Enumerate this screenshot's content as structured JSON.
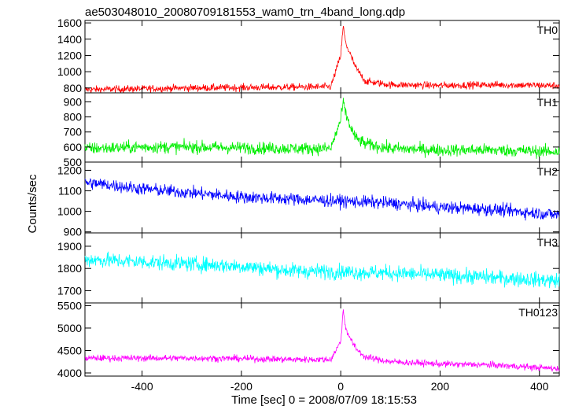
{
  "title": "ae503048010_20080709181553_wam0_trn_4band_long.qdp",
  "xlabel": "Time [sec] 0 = 2008/07/09 18:15:53",
  "ylabel": "Counts/sec",
  "chart_data": {
    "type": "line",
    "title": "ae503048010_20080709181553_wam0_trn_4band_long.qdp",
    "xlabel": "Time [sec] 0 = 2008/07/09 18:15:53",
    "ylabel": "Counts/sec",
    "xlim": [
      -515,
      440
    ],
    "x_ticks": [
      -400,
      -200,
      0,
      200,
      400
    ],
    "grid": false,
    "panels": [
      {
        "name": "TH0",
        "color": "#ff0000",
        "ylim": [
          740,
          1630
        ],
        "y_ticks": [
          800,
          1000,
          1200,
          1400,
          1600
        ],
        "description_points": {
          "x": [
            -510,
            -400,
            -300,
            -200,
            -100,
            -20,
            0,
            5,
            10,
            20,
            30,
            50,
            100,
            200,
            300,
            430
          ],
          "y": [
            780,
            790,
            800,
            805,
            810,
            815,
            1200,
            1560,
            1350,
            1200,
            1050,
            880,
            840,
            830,
            840,
            830
          ]
        }
      },
      {
        "name": "TH1",
        "color": "#00ee00",
        "ylim": [
          500,
          960
        ],
        "y_ticks": [
          500,
          600,
          700,
          800,
          900
        ],
        "description_points": {
          "x": [
            -510,
            -400,
            -300,
            -200,
            -100,
            -20,
            0,
            5,
            10,
            20,
            30,
            50,
            100,
            200,
            300,
            430
          ],
          "y": [
            590,
            600,
            600,
            595,
            590,
            590,
            780,
            900,
            820,
            730,
            660,
            620,
            590,
            580,
            580,
            570
          ]
        }
      },
      {
        "name": "TH2",
        "color": "#0000ff",
        "ylim": [
          895,
          1240
        ],
        "y_ticks": [
          900,
          1000,
          1100,
          1200
        ],
        "description_points": {
          "x": [
            -510,
            -400,
            -300,
            -200,
            -100,
            0,
            100,
            200,
            300,
            430
          ],
          "y": [
            1140,
            1110,
            1090,
            1070,
            1060,
            1050,
            1040,
            1020,
            1010,
            985
          ]
        }
      },
      {
        "name": "TH3",
        "color": "#00ffff",
        "ylim": [
          1645,
          1960
        ],
        "y_ticks": [
          1700,
          1800,
          1900
        ],
        "description_points": {
          "x": [
            -510,
            -400,
            -300,
            -200,
            -100,
            0,
            100,
            200,
            300,
            430
          ],
          "y": [
            1840,
            1830,
            1820,
            1810,
            1790,
            1785,
            1780,
            1770,
            1760,
            1745
          ]
        }
      },
      {
        "name": "TH0123",
        "color": "#ff00ff",
        "ylim": [
          3930,
          5560
        ],
        "y_ticks": [
          4000,
          4500,
          5000,
          5500
        ],
        "description_points": {
          "x": [
            -510,
            -400,
            -300,
            -200,
            -100,
            -20,
            0,
            5,
            10,
            20,
            30,
            50,
            100,
            200,
            300,
            430
          ],
          "y": [
            4330,
            4330,
            4330,
            4320,
            4300,
            4300,
            4700,
            5400,
            5000,
            4750,
            4550,
            4350,
            4250,
            4200,
            4180,
            4100
          ]
        }
      }
    ]
  }
}
